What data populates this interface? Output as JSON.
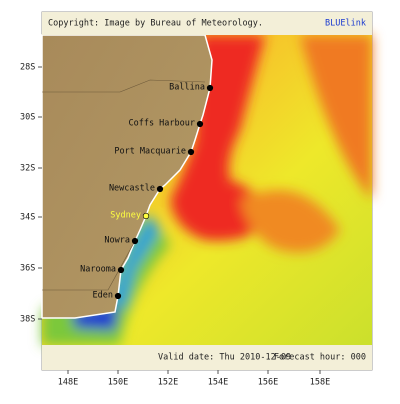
{
  "header": {
    "copyright": "Copyright: Image by Bureau of Meteorology.",
    "brand": "BLUElink"
  },
  "footer": {
    "valid_date": "Valid date: Thu 2010-12-09",
    "forecast_hour": "Forecast hour: 000"
  },
  "lat_labels": [
    "28S",
    "30S",
    "32S",
    "34S",
    "36S",
    "38S"
  ],
  "lon_labels": [
    "148E",
    "150E",
    "152E",
    "154E",
    "156E",
    "158E"
  ],
  "places": [
    "Ballina",
    "Coffs Harbour",
    "Port Macquarie",
    "Newcastle",
    "Sydney",
    "Nowra",
    "Narooma",
    "Eden"
  ]
}
